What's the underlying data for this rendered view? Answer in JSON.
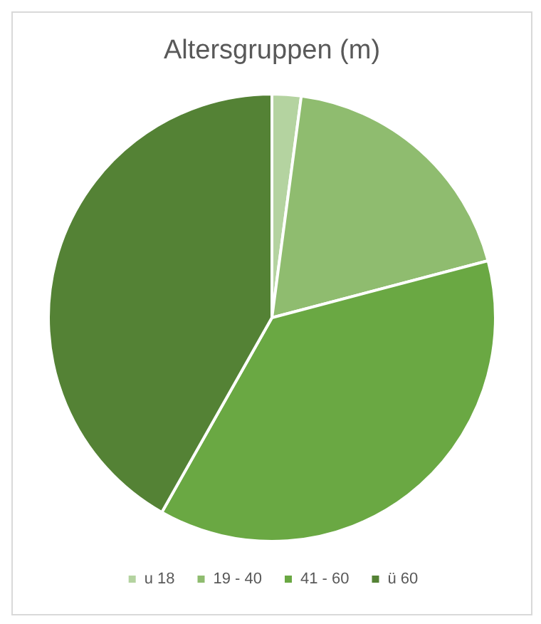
{
  "chart_data": {
    "type": "pie",
    "title": "Altersgruppen (m)",
    "categories": [
      "u 18",
      "19 - 40",
      "41 - 60",
      "ü 60"
    ],
    "values": [
      2.1,
      18.8,
      37.3,
      41.8
    ],
    "colors": [
      "#b4d3a0",
      "#8fbc6f",
      "#6aa843",
      "#548235"
    ],
    "legend": "bottom"
  }
}
